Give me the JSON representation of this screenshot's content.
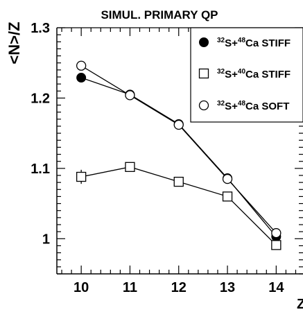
{
  "chart_data": {
    "type": "line",
    "title": "SIMUL. PRIMARY QP",
    "xlabel": "Z",
    "ylabel": "<N>/Z",
    "xlim": [
      9.5,
      14.55
    ],
    "ylim": [
      0.95,
      1.3
    ],
    "xticks": [
      10,
      11,
      12,
      13,
      14
    ],
    "xtick_labels": [
      "10",
      "11",
      "12",
      "13",
      "14"
    ],
    "yticks": [
      1.0,
      1.1,
      1.2,
      1.3
    ],
    "ytick_labels": [
      "1",
      "1.1",
      "1.2",
      "1.3"
    ],
    "grid": false,
    "legend_position": "top-right",
    "series": [
      {
        "name_sup1": "32",
        "name_mid": "S+",
        "name_sup2": "48",
        "name_end": "Ca STIFF",
        "marker": "filled-circle",
        "x": [
          10,
          11,
          12,
          13,
          14
        ],
        "y": [
          1.229,
          1.205,
          1.163,
          1.086,
          1.003
        ],
        "yerr": [
          0.005,
          0.003,
          0.003,
          0.003,
          0.004
        ]
      },
      {
        "name_sup1": "32",
        "name_mid": "S+",
        "name_sup2": "40",
        "name_end": "Ca STIFF",
        "marker": "open-square",
        "x": [
          10,
          11,
          12,
          13,
          14
        ],
        "y": [
          1.088,
          1.102,
          1.081,
          1.06,
          0.991
        ],
        "yerr": [
          0.01,
          0.004,
          0.004,
          0.004,
          0.004
        ]
      },
      {
        "name_sup1": "32",
        "name_mid": "S+",
        "name_sup2": "48",
        "name_end": "Ca SOFT",
        "marker": "open-circle",
        "x": [
          10,
          11,
          12,
          13,
          14
        ],
        "y": [
          1.246,
          1.204,
          1.162,
          1.085,
          1.008
        ],
        "yerr": [
          0.003,
          0.003,
          0.003,
          0.003,
          0.003
        ]
      }
    ]
  }
}
